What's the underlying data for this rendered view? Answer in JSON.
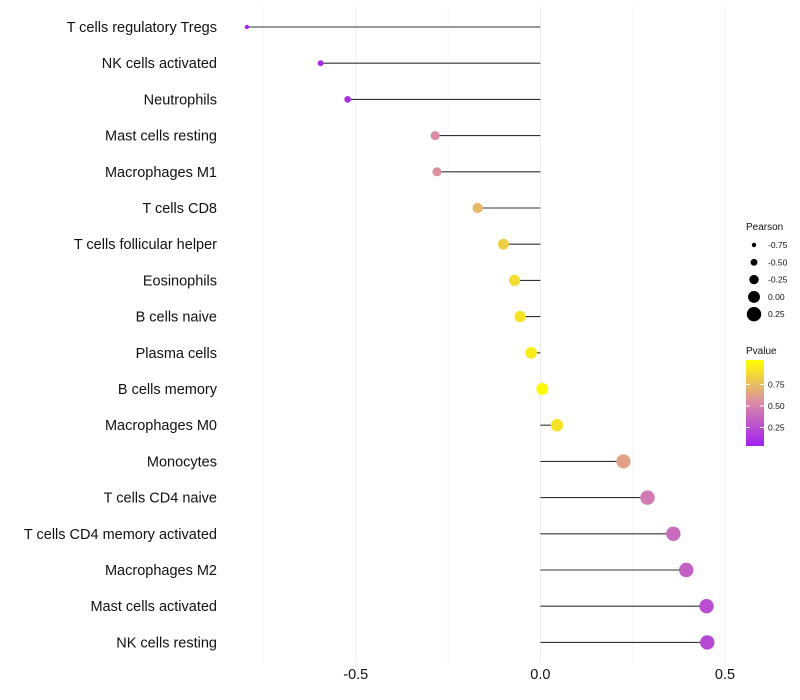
{
  "chart_data": {
    "type": "lollipop",
    "categories": [
      "T cells regulatory  Tregs",
      "NK cells activated",
      "Neutrophils",
      "Mast cells resting",
      "Macrophages M1",
      "T cells CD8",
      "T cells follicular helper",
      "Eosinophils",
      "B cells naive",
      "Plasma cells",
      "B cells memory",
      "Macrophages M0",
      "Monocytes",
      "T cells CD4 naive",
      "T cells CD4 memory activated",
      "Macrophages M2",
      "Mast cells activated",
      "NK cells resting"
    ],
    "values": [
      -0.795,
      -0.595,
      -0.522,
      -0.285,
      -0.28,
      -0.17,
      -0.1,
      -0.07,
      -0.055,
      -0.025,
      0.005,
      0.045,
      0.225,
      0.29,
      0.36,
      0.395,
      0.45,
      0.452
    ],
    "pvalues": [
      0.02,
      0.05,
      0.08,
      0.5,
      0.52,
      0.7,
      0.8,
      0.85,
      0.88,
      0.92,
      0.98,
      0.88,
      0.6,
      0.42,
      0.35,
      0.3,
      0.22,
      0.2
    ],
    "xlim": [
      -0.8,
      0.5
    ],
    "xticks": [
      -0.5,
      0.0,
      0.5
    ],
    "xtick_labels": [
      "-0.5",
      "0.0",
      "0.5"
    ],
    "grid": true,
    "size_legend": {
      "title": "Pearson",
      "values": [
        -0.75,
        -0.5,
        -0.25,
        0.0,
        0.25
      ],
      "labels": [
        "-0.75",
        "-0.50",
        "-0.25",
        "0.00",
        "0.25"
      ]
    },
    "color_legend": {
      "title": "Pvalue",
      "ticks": [
        0.75,
        0.5,
        0.25
      ],
      "labels": [
        "0.75",
        "0.50",
        "0.25"
      ],
      "low_color": "#a020f0",
      "mid_color": "#d98aa8",
      "high_color": "#ffff00"
    }
  }
}
